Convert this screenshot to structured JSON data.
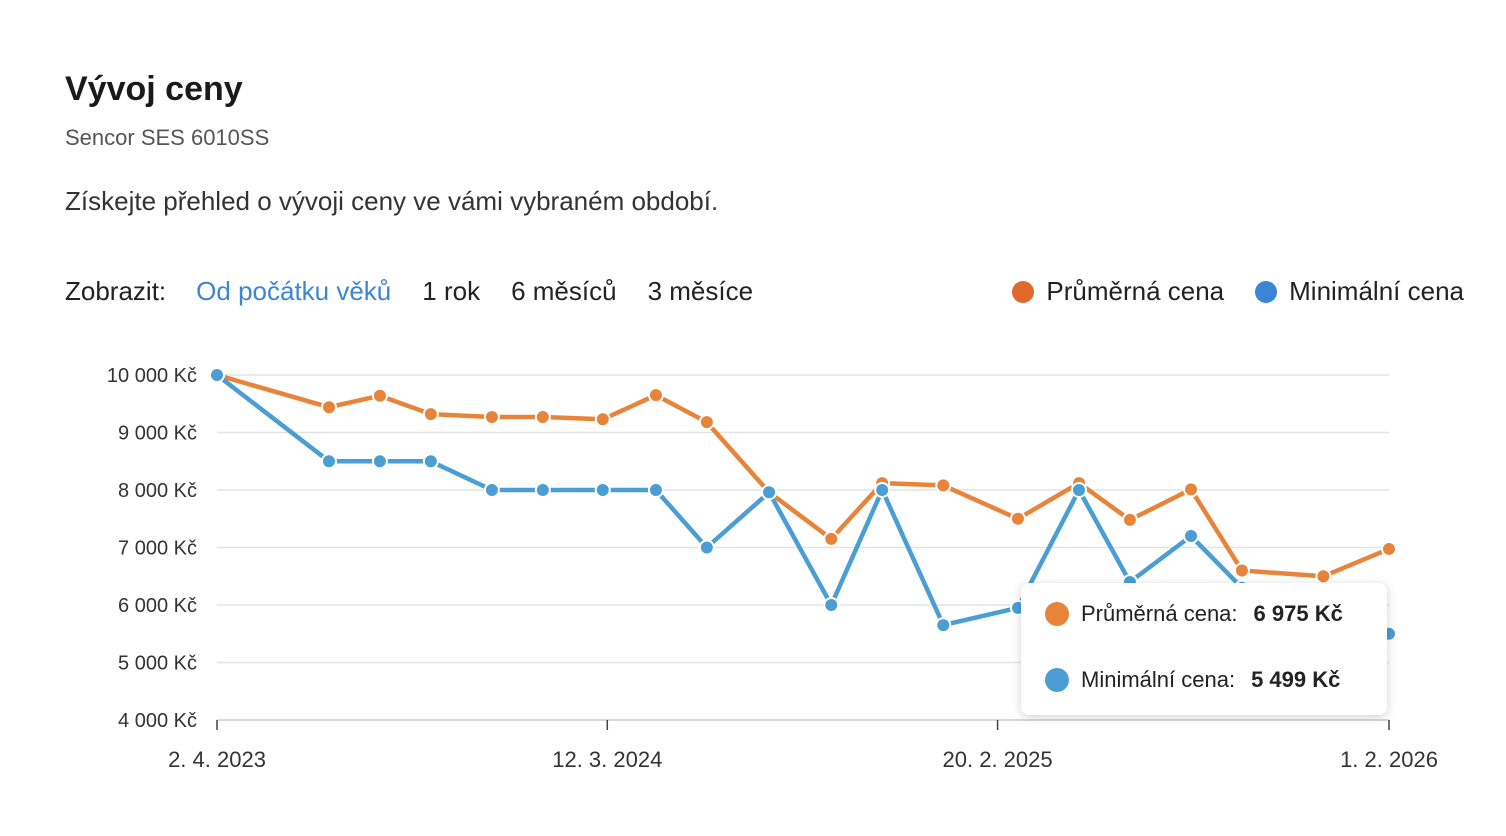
{
  "header": {
    "title": "Vývoj ceny",
    "product": "Sencor SES 6010SS",
    "description": "Získejte přehled o vývoji ceny ve vámi vybraném období."
  },
  "controls": {
    "label": "Zobrazit:",
    "ranges": [
      "Od počátku věků",
      "1 rok",
      "6 měsíců",
      "3 měsíce"
    ],
    "active_range": "Od počátku věků"
  },
  "legend": {
    "items": [
      {
        "label": "Průměrná cena",
        "color": "#e06a2c"
      },
      {
        "label": "Minimální cena",
        "color": "#3b86d4"
      }
    ]
  },
  "tooltip": {
    "avg_label": "Průměrná cena:",
    "avg_value": "6 975 Kč",
    "min_label": "Minimální cena:",
    "min_value": "5 499 Kč"
  },
  "chart_data": {
    "type": "line",
    "title": "",
    "xlabel": "",
    "ylabel": "",
    "ylim": [
      4000,
      10000
    ],
    "y_ticks": [
      4000,
      5000,
      6000,
      7000,
      8000,
      9000,
      10000
    ],
    "y_tick_labels": [
      "4 000 Kč",
      "5 000 Kč",
      "6 000 Kč",
      "7 000 Kč",
      "8 000 Kč",
      "9 000 Kč",
      "10 000 Kč"
    ],
    "x_ticks": [
      "2023-04-02",
      "2024-03-12",
      "2025-02-20",
      "2026-02-01"
    ],
    "x_tick_labels": [
      "2. 4. 2023",
      "12. 3. 2024",
      "20. 2. 2025",
      "1. 2. 2026"
    ],
    "grid": true,
    "legend_position": "top-right",
    "series": [
      {
        "name": "Průměrná cena",
        "color": "#e8843a",
        "points": [
          [
            "2023-04-02",
            10000
          ],
          [
            "2023-07-10",
            9440
          ],
          [
            "2023-08-24",
            9640
          ],
          [
            "2023-10-08",
            9320
          ],
          [
            "2023-12-01",
            9270
          ],
          [
            "2024-01-15",
            9270
          ],
          [
            "2024-03-08",
            9230
          ],
          [
            "2024-04-24",
            9650
          ],
          [
            "2024-06-08",
            9180
          ],
          [
            "2024-08-02",
            7960
          ],
          [
            "2024-09-26",
            7150
          ],
          [
            "2024-11-10",
            8120
          ],
          [
            "2025-01-03",
            8080
          ],
          [
            "2025-03-10",
            7500
          ],
          [
            "2025-05-03",
            8120
          ],
          [
            "2025-06-17",
            7480
          ],
          [
            "2025-08-10",
            8010
          ],
          [
            "2025-09-24",
            6600
          ],
          [
            "2025-12-05",
            6500
          ],
          [
            "2026-02-01",
            6975
          ]
        ]
      },
      {
        "name": "Minimální cena",
        "color": "#4a9ed4",
        "points": [
          [
            "2023-04-02",
            10000
          ],
          [
            "2023-07-10",
            8500
          ],
          [
            "2023-08-24",
            8500
          ],
          [
            "2023-10-08",
            8500
          ],
          [
            "2023-12-01",
            8000
          ],
          [
            "2024-01-15",
            8000
          ],
          [
            "2024-03-08",
            8000
          ],
          [
            "2024-04-24",
            8000
          ],
          [
            "2024-06-08",
            7000
          ],
          [
            "2024-08-02",
            7960
          ],
          [
            "2024-09-26",
            6000
          ],
          [
            "2024-11-10",
            8000
          ],
          [
            "2025-01-03",
            5650
          ],
          [
            "2025-03-10",
            5950
          ],
          [
            "2025-05-03",
            8000
          ],
          [
            "2025-06-17",
            6400
          ],
          [
            "2025-08-10",
            7200
          ],
          [
            "2025-09-24",
            6300
          ],
          [
            "2025-12-05",
            5200
          ],
          [
            "2026-02-01",
            5499
          ]
        ]
      }
    ]
  }
}
